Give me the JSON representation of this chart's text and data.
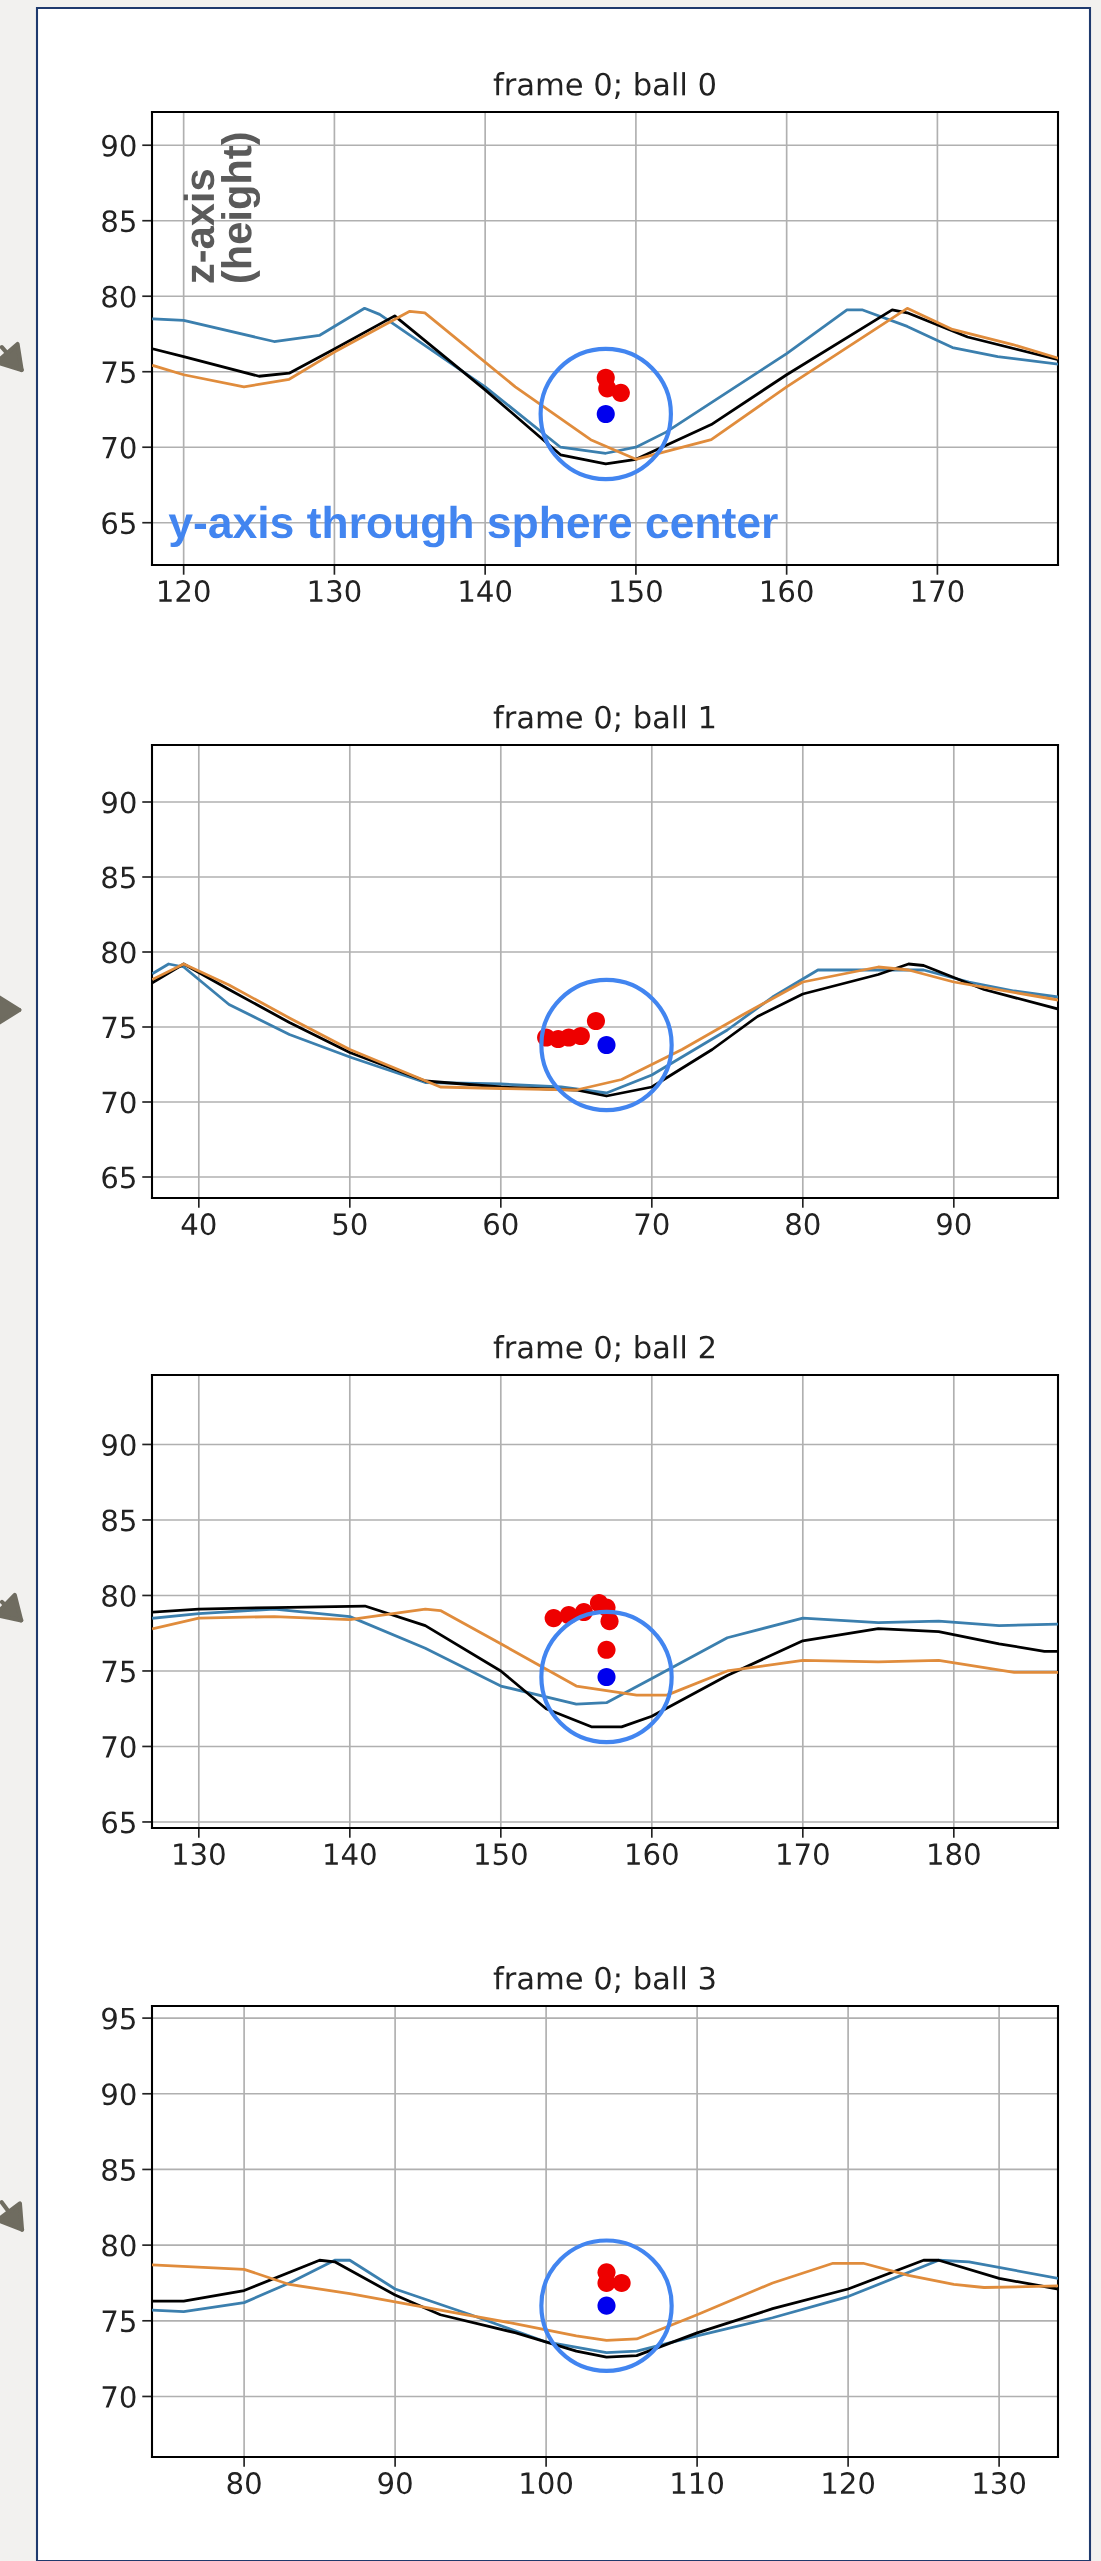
{
  "chart_data": [
    {
      "type": "line",
      "title": "frame 0; ball 0",
      "xlim": [
        117.9,
        178
      ],
      "ylim": [
        62.2,
        92.2
      ],
      "xticks": [
        120,
        130,
        140,
        150,
        160,
        170
      ],
      "yticks": [
        65,
        70,
        75,
        80,
        85,
        90
      ],
      "grid": true,
      "annotations": [
        "z-axis\n(height)",
        "y-axis through sphere center"
      ],
      "series": [
        {
          "type": "line",
          "color": "#3b7fae",
          "x": [
            118,
            120,
            126,
            129,
            132,
            133,
            140,
            145,
            148,
            150,
            152,
            160,
            164,
            165,
            168,
            171,
            174,
            178
          ],
          "values": [
            78.5,
            78.4,
            77.0,
            77.4,
            79.2,
            78.8,
            74.0,
            70.0,
            69.6,
            70.0,
            71.0,
            76.2,
            79.1,
            79.1,
            78.0,
            76.6,
            76.0,
            75.5
          ]
        },
        {
          "type": "line",
          "color": "#000000",
          "x": [
            118,
            120,
            125,
            127,
            130,
            134,
            140,
            145,
            148,
            150,
            155,
            160,
            167,
            168,
            172,
            178
          ],
          "values": [
            76.5,
            76.0,
            74.7,
            74.9,
            76.5,
            78.7,
            73.8,
            69.5,
            68.9,
            69.2,
            71.5,
            74.8,
            79.1,
            78.9,
            77.3,
            75.8
          ]
        },
        {
          "type": "line",
          "color": "#e08c3c",
          "x": [
            118,
            120,
            124,
            127,
            130,
            135,
            136,
            142,
            147,
            150,
            155,
            160,
            168,
            171,
            175,
            178
          ],
          "values": [
            75.4,
            74.8,
            74.0,
            74.5,
            76.3,
            79.0,
            78.9,
            74.0,
            70.5,
            69.2,
            70.5,
            74.0,
            79.2,
            77.8,
            76.8,
            75.9
          ]
        },
        {
          "type": "scatter",
          "color": "#ee0000",
          "x": [
            148.0,
            148.1,
            149.0
          ],
          "values": [
            74.6,
            73.9,
            73.6
          ]
        },
        {
          "type": "scatter",
          "color": "#0000ee",
          "x": [
            148.0
          ],
          "values": [
            72.2
          ]
        }
      ]
    },
    {
      "type": "line",
      "title": "frame 0; ball 1",
      "xlim": [
        36.9,
        96.9
      ],
      "ylim": [
        63.6,
        93.8
      ],
      "xticks": [
        40,
        50,
        60,
        70,
        80,
        90
      ],
      "yticks": [
        65,
        70,
        75,
        80,
        85,
        90
      ],
      "grid": true,
      "series": [
        {
          "type": "line",
          "color": "#3b7fae",
          "x": [
            37,
            38,
            39,
            42,
            46,
            50,
            55,
            60,
            64,
            67,
            70,
            75,
            78,
            81,
            84,
            88,
            91,
            94,
            96.9
          ],
          "values": [
            78.6,
            79.2,
            79.0,
            76.5,
            74.5,
            73.0,
            71.3,
            71.2,
            71.0,
            70.6,
            71.8,
            74.8,
            77.0,
            78.8,
            78.8,
            78.8,
            78.0,
            77.4,
            77.0
          ]
        },
        {
          "type": "line",
          "color": "#000000",
          "x": [
            37,
            39,
            42,
            46,
            50,
            55,
            60,
            65,
            67,
            70,
            74,
            77,
            80,
            85,
            87,
            88,
            92,
            96.9
          ],
          "values": [
            78.0,
            79.2,
            77.5,
            75.3,
            73.3,
            71.4,
            71.0,
            70.8,
            70.4,
            71.0,
            73.5,
            75.7,
            77.2,
            78.5,
            79.2,
            79.1,
            77.5,
            76.2
          ]
        },
        {
          "type": "line",
          "color": "#e08c3c",
          "x": [
            37,
            39,
            42,
            46,
            50,
            56,
            60,
            65,
            68,
            72,
            76,
            80,
            85,
            87,
            90,
            96.9
          ],
          "values": [
            78.2,
            79.2,
            77.8,
            75.6,
            73.5,
            71.0,
            70.9,
            70.8,
            71.5,
            73.5,
            75.8,
            78.0,
            79.0,
            78.8,
            78.0,
            76.8
          ]
        },
        {
          "type": "scatter",
          "color": "#ee0000",
          "x": [
            63.0,
            63.8,
            64.5,
            65.3,
            66.3
          ],
          "values": [
            74.3,
            74.2,
            74.3,
            74.4,
            75.4
          ]
        },
        {
          "type": "scatter",
          "color": "#0000ee",
          "x": [
            67.0
          ],
          "values": [
            73.8
          ]
        }
      ]
    },
    {
      "type": "line",
      "title": "frame 0; ball 2",
      "xlim": [
        126.9,
        186.9
      ],
      "ylim": [
        64.6,
        94.6
      ],
      "xticks": [
        130,
        140,
        150,
        160,
        170,
        180
      ],
      "yticks": [
        65,
        70,
        75,
        80,
        85,
        90
      ],
      "grid": true,
      "series": [
        {
          "type": "line",
          "color": "#3b7fae",
          "x": [
            127,
            130,
            135,
            140,
            145,
            150,
            155,
            157,
            160,
            165,
            170,
            175,
            179,
            183,
            186.9
          ],
          "values": [
            78.5,
            78.8,
            79.1,
            78.6,
            76.5,
            74.0,
            72.8,
            72.9,
            74.5,
            77.2,
            78.5,
            78.2,
            78.3,
            78.0,
            78.1
          ]
        },
        {
          "type": "line",
          "color": "#000000",
          "x": [
            127,
            130,
            135,
            141,
            145,
            150,
            153,
            156,
            158,
            160,
            165,
            170,
            175,
            179,
            183,
            186,
            186.9
          ],
          "values": [
            78.9,
            79.1,
            79.2,
            79.3,
            78.0,
            75.0,
            72.5,
            71.3,
            71.3,
            72.0,
            74.7,
            77.0,
            77.8,
            77.6,
            76.8,
            76.3,
            76.3
          ]
        },
        {
          "type": "line",
          "color": "#e08c3c",
          "x": [
            127,
            130,
            135,
            140,
            145,
            146,
            150,
            155,
            159,
            161,
            165,
            170,
            175,
            179,
            184,
            186.9
          ],
          "values": [
            77.8,
            78.5,
            78.6,
            78.4,
            79.1,
            79.0,
            76.8,
            74.0,
            73.4,
            73.4,
            75.0,
            75.7,
            75.6,
            75.7,
            74.9,
            74.9
          ]
        },
        {
          "type": "scatter",
          "color": "#ee0000",
          "x": [
            153.5,
            154.5,
            155.5,
            156.5,
            157.0,
            157.2,
            157.0
          ],
          "values": [
            78.5,
            78.7,
            78.9,
            79.5,
            79.2,
            78.3,
            76.4
          ]
        },
        {
          "type": "scatter",
          "color": "#0000ee",
          "x": [
            157.0
          ],
          "values": [
            74.6
          ]
        }
      ]
    },
    {
      "type": "line",
      "title": "frame 0; ball 3",
      "xlim": [
        73.9,
        133.9
      ],
      "ylim": [
        66.0,
        95.8
      ],
      "xticks": [
        80,
        90,
        100,
        110,
        120,
        130
      ],
      "yticks": [
        70,
        75,
        80,
        85,
        90,
        95
      ],
      "grid": true,
      "series": [
        {
          "type": "line",
          "color": "#3b7fae",
          "x": [
            73.9,
            76,
            80,
            83,
            86,
            87,
            90,
            95,
            100,
            104,
            106,
            110,
            115,
            120,
            126,
            128,
            133.9
          ],
          "values": [
            75.7,
            75.6,
            76.2,
            77.5,
            79.0,
            79.0,
            77.1,
            75.4,
            73.6,
            72.9,
            73.0,
            74.0,
            75.2,
            76.6,
            79.0,
            78.9,
            77.8
          ]
        },
        {
          "type": "line",
          "color": "#000000",
          "x": [
            73.9,
            76,
            80,
            85,
            86,
            90,
            93,
            98,
            102,
            104,
            106,
            110,
            115,
            120,
            125,
            126,
            130,
            133.9
          ],
          "values": [
            76.3,
            76.3,
            77.0,
            79.0,
            78.9,
            76.7,
            75.4,
            74.2,
            73.0,
            72.6,
            72.7,
            74.2,
            75.8,
            77.1,
            79.0,
            79.0,
            77.8,
            77.1
          ]
        },
        {
          "type": "line",
          "color": "#e08c3c",
          "x": [
            73.9,
            80,
            83,
            87,
            93,
            98,
            102,
            104,
            106,
            110,
            115,
            119,
            121,
            124,
            127,
            129,
            133.9
          ],
          "values": [
            78.7,
            78.4,
            77.4,
            76.8,
            75.7,
            74.8,
            74.0,
            73.7,
            73.8,
            75.4,
            77.5,
            78.8,
            78.8,
            78.0,
            77.4,
            77.2,
            77.3
          ]
        },
        {
          "type": "scatter",
          "color": "#ee0000",
          "x": [
            104.0,
            104.0,
            105.0
          ],
          "values": [
            78.2,
            77.5,
            77.5
          ]
        },
        {
          "type": "scatter",
          "color": "#0000ee",
          "x": [
            104.0
          ],
          "values": [
            76.0
          ]
        }
      ]
    }
  ]
}
